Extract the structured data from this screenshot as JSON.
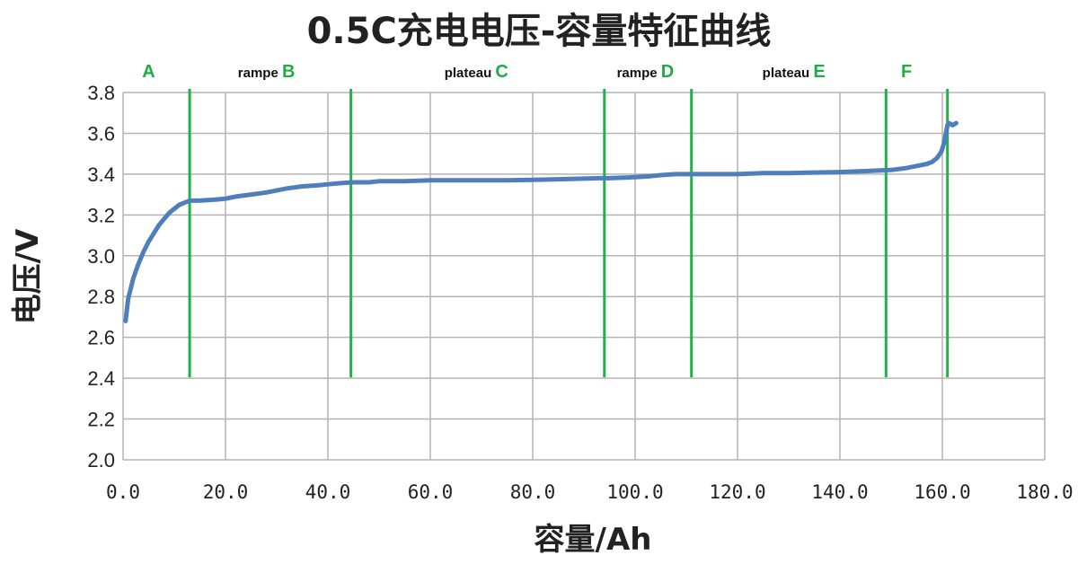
{
  "chart_data": {
    "type": "line",
    "title": "0.5C充电电压-容量特征曲线",
    "xlabel": "容量/Ah",
    "ylabel": "电压/V",
    "xlim": [
      0,
      180
    ],
    "ylim": [
      2.0,
      3.8
    ],
    "x_ticks": [
      "0.0",
      "20.0",
      "40.0",
      "60.0",
      "80.0",
      "100.0",
      "120.0",
      "140.0",
      "160.0",
      "180.0"
    ],
    "y_ticks": [
      "2.0",
      "2.2",
      "2.4",
      "2.6",
      "2.8",
      "3.0",
      "3.2",
      "3.4",
      "3.6",
      "3.8"
    ],
    "grid": true,
    "line_color": "#4f7fba",
    "marker_color": "#22b04a",
    "series": [
      {
        "x": [
          0.5,
          1,
          2,
          3,
          4,
          5,
          6,
          7,
          8,
          9,
          10,
          11,
          12,
          13,
          15,
          18,
          20,
          22,
          25,
          28,
          30,
          32,
          35,
          38,
          40,
          42,
          45,
          48,
          50,
          55,
          60,
          65,
          70,
          75,
          80,
          85,
          90,
          93,
          95,
          98,
          100,
          103,
          105,
          108,
          110,
          115,
          120,
          125,
          130,
          135,
          140,
          145,
          148,
          150,
          153,
          155,
          157,
          158,
          159,
          159.8,
          160.3,
          160.7,
          161.0,
          161.3,
          162.0,
          162.7
        ],
        "y": [
          2.68,
          2.79,
          2.89,
          2.96,
          3.02,
          3.07,
          3.11,
          3.15,
          3.18,
          3.21,
          3.23,
          3.25,
          3.26,
          3.27,
          3.27,
          3.275,
          3.28,
          3.29,
          3.3,
          3.31,
          3.32,
          3.33,
          3.34,
          3.345,
          3.35,
          3.355,
          3.36,
          3.36,
          3.365,
          3.365,
          3.37,
          3.37,
          3.37,
          3.37,
          3.372,
          3.375,
          3.378,
          3.38,
          3.38,
          3.383,
          3.385,
          3.39,
          3.395,
          3.4,
          3.4,
          3.4,
          3.4,
          3.405,
          3.405,
          3.408,
          3.41,
          3.415,
          3.418,
          3.42,
          3.43,
          3.44,
          3.45,
          3.46,
          3.48,
          3.51,
          3.55,
          3.6,
          3.64,
          3.65,
          3.64,
          3.65
        ]
      }
    ],
    "region_markers": [
      13,
      44.5,
      94,
      111,
      149,
      161
    ],
    "region_labels": [
      {
        "word": "",
        "letter": "A",
        "x": 5
      },
      {
        "word": "rampe",
        "letter": "B",
        "x": 28
      },
      {
        "word": "plateau",
        "letter": "C",
        "x": 69
      },
      {
        "word": "rampe",
        "letter": "D",
        "x": 102
      },
      {
        "word": "plateau",
        "letter": "E",
        "x": 131
      },
      {
        "word": "",
        "letter": "F",
        "x": 153
      }
    ]
  }
}
